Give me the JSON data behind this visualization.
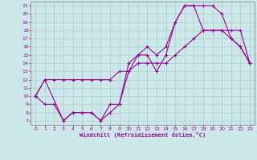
{
  "xlabel": "Windchill (Refroidissement éolien,°C)",
  "bg_color": "#cde8e8",
  "grid_color": "#b0d0d0",
  "line_color": "#990099",
  "xlim": [
    -0.5,
    23.5
  ],
  "ylim": [
    6.5,
    21.5
  ],
  "xticks": [
    0,
    1,
    2,
    3,
    4,
    5,
    6,
    7,
    8,
    9,
    10,
    11,
    12,
    13,
    14,
    15,
    16,
    17,
    18,
    19,
    20,
    21,
    22,
    23
  ],
  "yticks": [
    7,
    8,
    9,
    10,
    11,
    12,
    13,
    14,
    15,
    16,
    17,
    18,
    19,
    20,
    21
  ],
  "line1_x": [
    0,
    1,
    2,
    3,
    4,
    5,
    6,
    7,
    8,
    9,
    10,
    11,
    12,
    13,
    14,
    15,
    16,
    17,
    18,
    19,
    20,
    21,
    22,
    23
  ],
  "line1_y": [
    10,
    12,
    12,
    12,
    12,
    12,
    12,
    12,
    12,
    13,
    13,
    14,
    14,
    14,
    14,
    15,
    16,
    17,
    18,
    18,
    18,
    18,
    18,
    14
  ],
  "line2_x": [
    0,
    1,
    2,
    3,
    4,
    5,
    6,
    7,
    8,
    9,
    10,
    11,
    12,
    13,
    14,
    15,
    16,
    17,
    18,
    19,
    20,
    21,
    22,
    23
  ],
  "line2_y": [
    10,
    9,
    9,
    7,
    8,
    8,
    8,
    7,
    8,
    9,
    13,
    15,
    15,
    13,
    15,
    19,
    21,
    21,
    21,
    21,
    20,
    17,
    16,
    14
  ],
  "line3_x": [
    0,
    1,
    3,
    4,
    5,
    6,
    7,
    8,
    9,
    10,
    11,
    12,
    13,
    14,
    15,
    16,
    17,
    18,
    19,
    20,
    21,
    22,
    23
  ],
  "line3_y": [
    10,
    12,
    7,
    8,
    8,
    8,
    7,
    9,
    9,
    14,
    15,
    16,
    15,
    16,
    19,
    21,
    21,
    18,
    18,
    18,
    17,
    16,
    14
  ]
}
